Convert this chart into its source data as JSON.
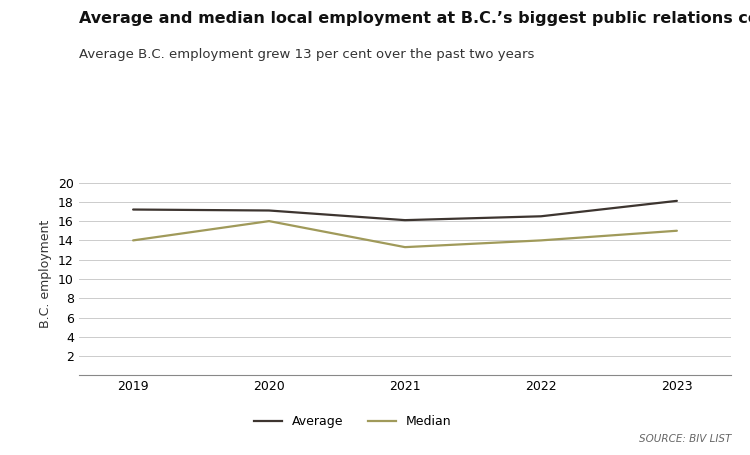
{
  "title": "Average and median local employment at B.C.’s biggest public relations companies",
  "subtitle": "Average B.C. employment grew 13 per cent over the past two years",
  "years": [
    2019,
    2020,
    2021,
    2022,
    2023
  ],
  "average": [
    17.2,
    17.1,
    16.1,
    16.5,
    18.1
  ],
  "median": [
    14.0,
    16.0,
    13.3,
    14.0,
    15.0
  ],
  "average_color": "#3d3530",
  "median_color": "#a09a5a",
  "ylabel": "B.C. employment",
  "yticks": [
    2,
    4,
    6,
    8,
    10,
    12,
    14,
    16,
    18,
    20
  ],
  "ylim": [
    0,
    21
  ],
  "xlim": [
    2018.6,
    2023.4
  ],
  "source_text": "SOURCE: BIV LIST",
  "legend_average": "Average",
  "legend_median": "Median",
  "title_fontsize": 11.5,
  "subtitle_fontsize": 9.5,
  "axis_fontsize": 9,
  "background_color": "#ffffff",
  "grid_color": "#cccccc"
}
